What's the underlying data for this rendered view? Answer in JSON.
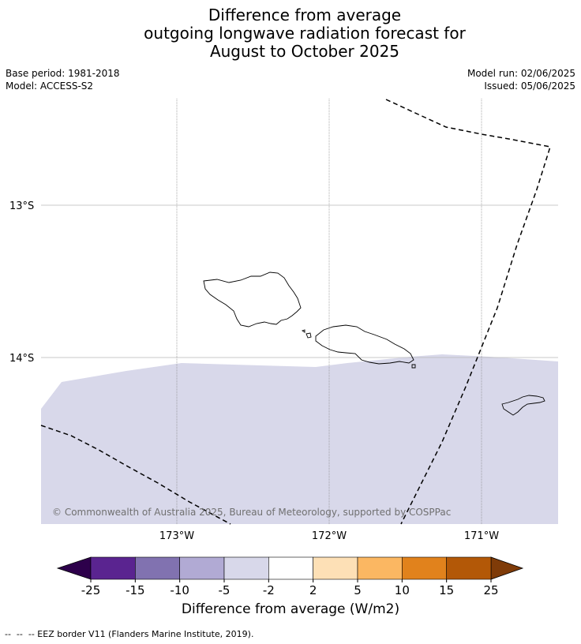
{
  "title": {
    "line1": "Difference from average",
    "line2": "outgoing longwave radiation forecast for",
    "line3": "August to October 2025"
  },
  "meta": {
    "base_period": "Base period: 1981-2018",
    "model": "Model: ACCESS-S2",
    "model_run": "Model run: 02/06/2025",
    "issued": "Issued: 05/06/2025"
  },
  "map": {
    "lat_labels": [
      "13°S",
      "14°S"
    ],
    "lon_labels": [
      "173°W",
      "172°W",
      "171°W"
    ],
    "copyright": "© Commonwealth of Australia 2025, Bureau of Meteorology, supported by COSPPac",
    "fill_color": "#d8d8ea"
  },
  "colorbar": {
    "ticks": [
      "-25",
      "-15",
      "-10",
      "-5",
      "-2",
      "2",
      "5",
      "10",
      "15",
      "25"
    ],
    "colors": [
      "#5a2490",
      "#8172b0",
      "#b1aad4",
      "#d8d8ea",
      "#ffffff",
      "#fde0b6",
      "#fbb762",
      "#e1821c",
      "#b35807"
    ],
    "under_color": "#2d004b",
    "over_color": "#7f3b08",
    "label": "Difference from average (W/m2)"
  },
  "footer": "--  --  -- EEZ border V11 (Flanders Marine Institute, 2019)."
}
